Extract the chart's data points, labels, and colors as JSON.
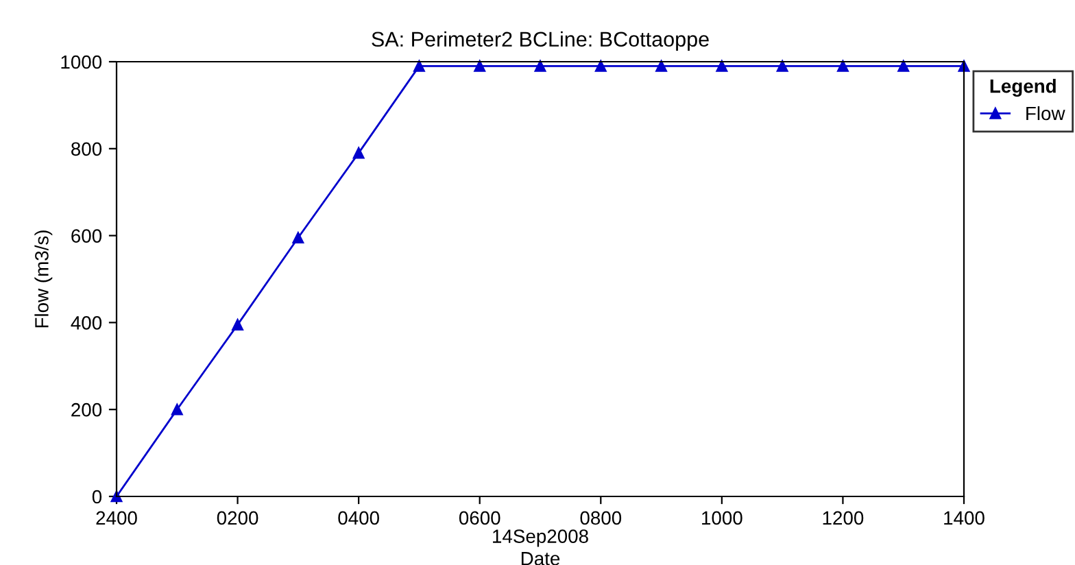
{
  "chart_data": {
    "type": "line",
    "title": "SA: Perimeter2 BCLine: BCottaoppe",
    "xlabel": "Date",
    "ylabel": "Flow (m3/s)",
    "legend_title": "Legend",
    "annotations": [
      "14Sep2008"
    ],
    "categories": [
      "2400",
      null,
      "0200",
      null,
      "0400",
      null,
      "0600",
      null,
      "0800",
      null,
      "1000",
      null,
      "1200",
      null,
      "1400"
    ],
    "series": [
      {
        "name": "Flow",
        "color": "#0000cc",
        "values": [
          0,
          200,
          395,
          595,
          790,
          990,
          990,
          990,
          990,
          990,
          990,
          990,
          990,
          990,
          990
        ]
      }
    ],
    "ylim": [
      0,
      1000
    ],
    "yticks": [
      0,
      200,
      400,
      600,
      800,
      1000
    ],
    "grid": false,
    "legend": "top right",
    "marker": "triangle",
    "line_style": "solid"
  }
}
